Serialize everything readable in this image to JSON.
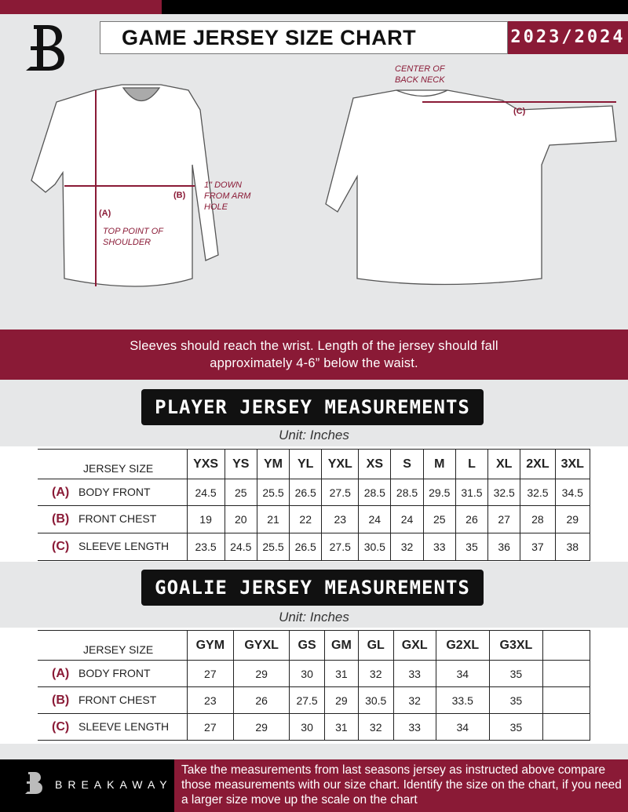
{
  "header": {
    "title": "GAME JERSEY SIZE CHART",
    "season": "2023/2024"
  },
  "diagram": {
    "center_back_neck": "CENTER OF BACK NECK",
    "label_a": "(A)",
    "label_b": "(B)",
    "label_c": "(C)",
    "down_note": "1\" DOWN FROM ARM HOLE",
    "shoulder_note": "TOP POINT OF SHOULDER"
  },
  "banner": {
    "line1": "Sleeves should reach the wrist. Length of the jersey should fall",
    "line2": "approximately 4-6” below the waist."
  },
  "player": {
    "title": "PLAYER JERSEY MEASUREMENTS",
    "unit": "Unit: Inches",
    "size_header": "JERSEY SIZE",
    "sizes": [
      "YXS",
      "YS",
      "YM",
      "YL",
      "YXL",
      "XS",
      "S",
      "M",
      "L",
      "XL",
      "2XL",
      "3XL"
    ],
    "rows": [
      {
        "key": "(A)",
        "label": "BODY FRONT",
        "values": [
          "24.5",
          "25",
          "25.5",
          "26.5",
          "27.5",
          "28.5",
          "28.5",
          "29.5",
          "31.5",
          "32.5",
          "32.5",
          "34.5"
        ]
      },
      {
        "key": "(B)",
        "label": "FRONT CHEST",
        "values": [
          "19",
          "20",
          "21",
          "22",
          "23",
          "24",
          "24",
          "25",
          "26",
          "27",
          "28",
          "29"
        ]
      },
      {
        "key": "(C)",
        "label": "SLEEVE LENGTH",
        "values": [
          "23.5",
          "24.5",
          "25.5",
          "26.5",
          "27.5",
          "30.5",
          "32",
          "33",
          "35",
          "36",
          "37",
          "38"
        ]
      }
    ]
  },
  "goalie": {
    "title": "GOALIE JERSEY MEASUREMENTS",
    "unit": "Unit: Inches",
    "size_header": "JERSEY SIZE",
    "sizes": [
      "GYM",
      "GYXL",
      "GS",
      "GM",
      "GL",
      "GXL",
      "G2XL",
      "G3XL"
    ],
    "rows": [
      {
        "key": "(A)",
        "label": "BODY FRONT",
        "values": [
          "27",
          "29",
          "30",
          "31",
          "32",
          "33",
          "34",
          "35"
        ]
      },
      {
        "key": "(B)",
        "label": "FRONT CHEST",
        "values": [
          "23",
          "26",
          "27.5",
          "29",
          "30.5",
          "32",
          "33.5",
          "35"
        ]
      },
      {
        "key": "(C)",
        "label": "SLEEVE LENGTH",
        "values": [
          "27",
          "29",
          "30",
          "31",
          "32",
          "33",
          "34",
          "35"
        ]
      }
    ]
  },
  "footer": {
    "brand": "BREAKAWAY",
    "text": "Take the measurements from last seasons jersey as instructed above compare those measurements  with our size chart. Identify the size on the chart, if you need a larger size move up the scale on the chart"
  },
  "colors": {
    "accent": "#8a1a36",
    "dark": "#000000",
    "background": "#e6e7e8"
  }
}
